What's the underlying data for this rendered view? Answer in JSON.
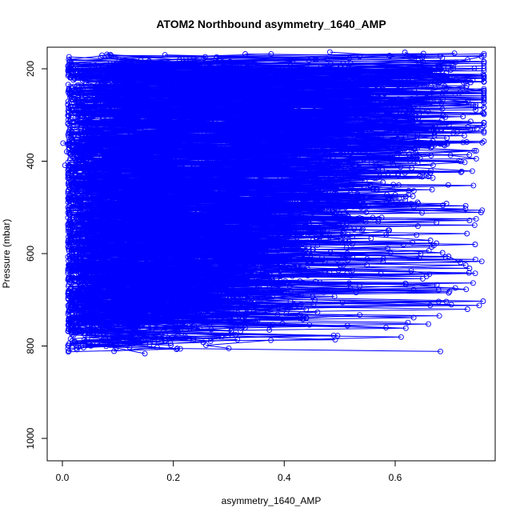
{
  "chart_data": {
    "type": "scatter",
    "title": "ATOM2 Northbound asymmetry_1640_AMP",
    "xlabel": "asymmetry_1640_AMP",
    "ylabel": "Pressure (mbar)",
    "xlim": [
      -0.045,
      0.78
    ],
    "ylim": [
      1050,
      160
    ],
    "y_axis_inverted": true,
    "x_ticks": [
      "0.0",
      "0.2",
      "0.4",
      "0.6"
    ],
    "y_ticks": [
      "200",
      "400",
      "600",
      "800",
      "1000"
    ],
    "marker": "open-circle",
    "connected_by_lines": true,
    "grid": false,
    "legend": "none",
    "series_color": "#0000ff",
    "x_range_shown": [
      0.0,
      0.76
    ],
    "pressure_range_shown": [
      165,
      815
    ],
    "profiles_approx": 60,
    "points_per_profile_approx": 70
  }
}
